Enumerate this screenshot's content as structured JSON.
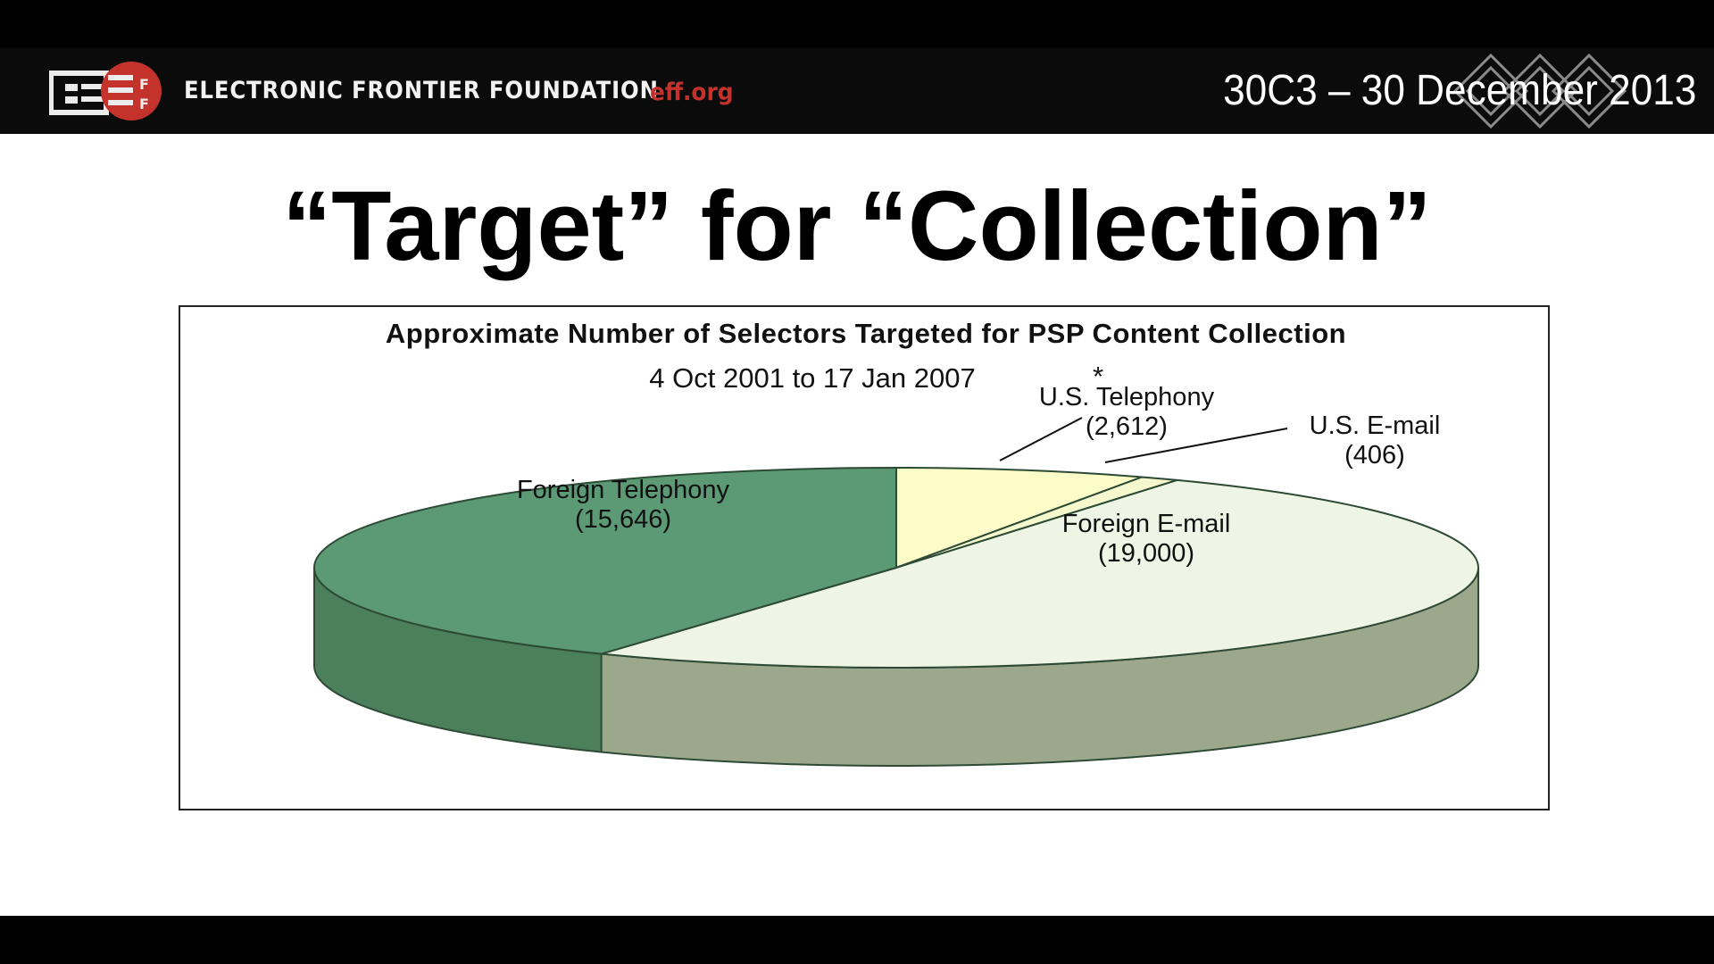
{
  "header": {
    "org_name": "ELECTRONIC FRONTIER FOUNDATION",
    "org_url": "eff.org",
    "event_date": "30C3 – 30 December 2013",
    "colors": {
      "brand_red": "#c3322b",
      "bar_bg": "#0b0b0b"
    }
  },
  "slide": {
    "title": "“Target” for “Collection”"
  },
  "chart_data": {
    "type": "pie",
    "title": "Approximate Number of Selectors Targeted for PSP Content Collection",
    "subtitle": "4 Oct 2001 to 17 Jan 2007",
    "note": "*",
    "slices": [
      {
        "label": "U.S. Telephony",
        "value": 2612,
        "value_label": "(2,612)",
        "color": "#fbfcc8"
      },
      {
        "label": "U.S. E-mail",
        "value": 406,
        "value_label": "(406)",
        "color": "#f5f7cc"
      },
      {
        "label": "Foreign E-mail",
        "value": 19000,
        "value_label": "(19,000)",
        "color": "#eef5e4"
      },
      {
        "label": "Foreign Telephony",
        "value": 15646,
        "value_label": "(15,646)",
        "color": "#5c9a75"
      }
    ],
    "style": "3d",
    "side_colors": {
      "Foreign E-mail": "#9ba88c",
      "Foreign Telephony": "#4c7f5b"
    }
  }
}
